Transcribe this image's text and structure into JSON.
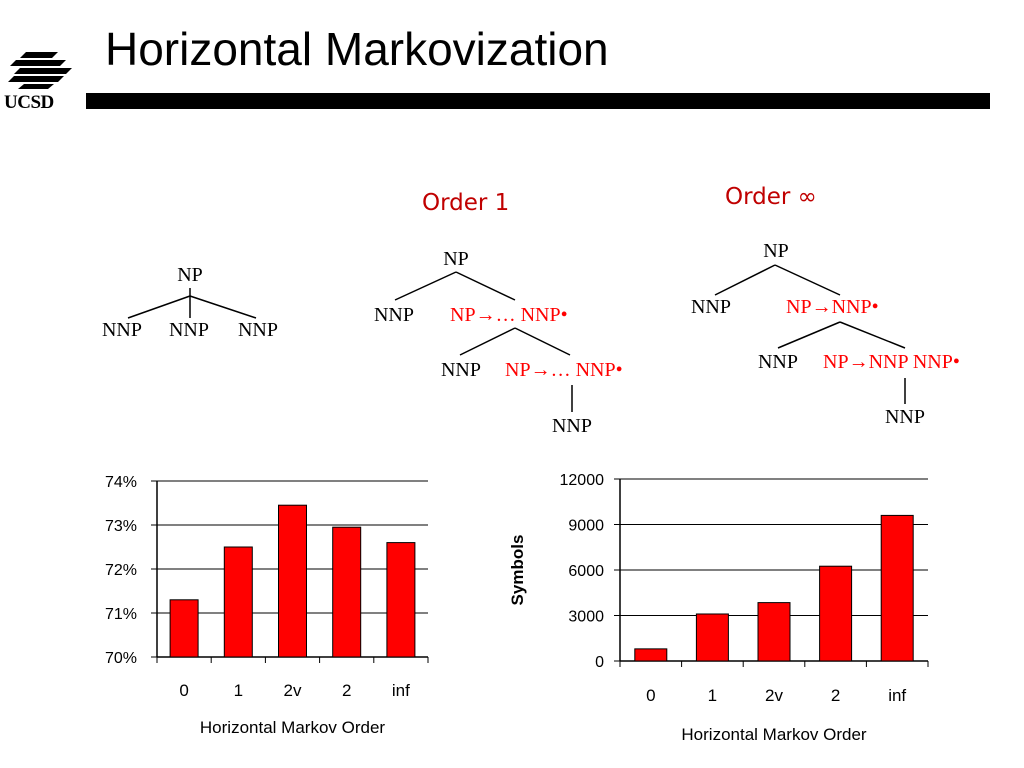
{
  "slide": {
    "title": "Horizontal Markovization",
    "logo_text": "UCSD",
    "accent_color": "#c00000"
  },
  "trees": {
    "flat": {
      "root": "NP",
      "children": [
        "NNP",
        "NNP",
        "NNP"
      ]
    },
    "order1": {
      "label": "Order 1",
      "root": "NP",
      "level1_left": "NNP",
      "level1_right": "NP→… NNP•",
      "level2_left": "NNP",
      "level2_right": "NP→… NNP•",
      "level3": "NNP"
    },
    "orderinf": {
      "label": "Order ∞",
      "root": "NP",
      "level1_left": "NNP",
      "level1_right": "NP→NNP•",
      "level2_left": "NNP",
      "level2_right": "NP→NNP NNP•",
      "level3": "NNP"
    }
  },
  "chart_data": [
    {
      "type": "bar",
      "categories": [
        "0",
        "1",
        "2v",
        "2",
        "inf"
      ],
      "values": [
        71.3,
        72.5,
        73.45,
        72.95,
        72.6
      ],
      "xlabel": "Horizontal Markov Order",
      "ylabel": "",
      "ylim": [
        70,
        74
      ],
      "yticks": [
        "74%",
        "73%",
        "72%",
        "71%",
        "70%"
      ],
      "bar_color": "#ff0000",
      "grid": true
    },
    {
      "type": "bar",
      "categories": [
        "0",
        "1",
        "2v",
        "2",
        "inf"
      ],
      "values": [
        800,
        3100,
        3850,
        6250,
        9600
      ],
      "xlabel": "Horizontal Markov Order",
      "ylabel": "Symbols",
      "ylim": [
        0,
        12000
      ],
      "yticks": [
        "12000",
        "9000",
        "6000",
        "3000",
        "0"
      ],
      "bar_color": "#ff0000",
      "grid": true
    }
  ]
}
